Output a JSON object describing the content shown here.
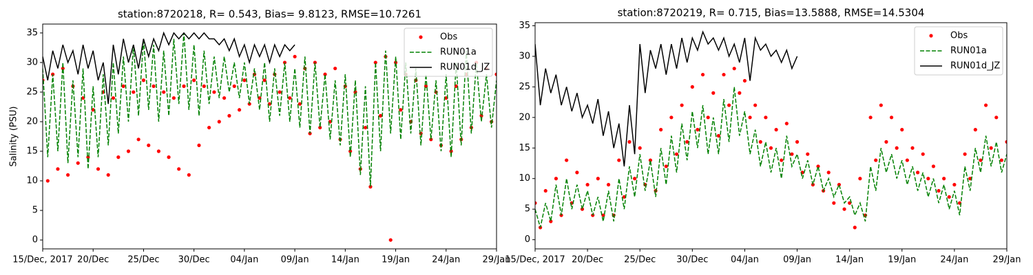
{
  "chart_data": [
    {
      "type": "line",
      "title": "station:8720218, R= 0.543, Bias= 9.8123, RMSE=10.7261",
      "ylabel": "Salinity (PSU)",
      "xlim": [
        0,
        45
      ],
      "ylim": [
        -1.5,
        36.5
      ],
      "xticks": [
        {
          "value": 0,
          "label": "15/Dec, 2017"
        },
        {
          "value": 5,
          "label": "20/Dec"
        },
        {
          "value": 10,
          "label": "25/Dec"
        },
        {
          "value": 15,
          "label": "30/Dec"
        },
        {
          "value": 20,
          "label": "04/Jan"
        },
        {
          "value": 25,
          "label": "09/Jan"
        },
        {
          "value": 30,
          "label": "14/Jan"
        },
        {
          "value": 35,
          "label": "19/Jan"
        },
        {
          "value": 40,
          "label": "24/Jan"
        },
        {
          "value": 45,
          "label": "29/Jan"
        }
      ],
      "yticks": [
        0,
        5,
        10,
        15,
        20,
        25,
        30,
        35
      ],
      "legend": "upper right",
      "x": [
        0,
        0.5,
        1,
        1.5,
        2,
        2.5,
        3,
        3.5,
        4,
        4.5,
        5,
        5.5,
        6,
        6.5,
        7,
        7.5,
        8,
        8.5,
        9,
        9.5,
        10,
        10.5,
        11,
        11.5,
        12,
        12.5,
        13,
        13.5,
        14,
        14.5,
        15,
        15.5,
        16,
        16.5,
        17,
        17.5,
        18,
        18.5,
        19,
        19.5,
        20,
        20.5,
        21,
        21.5,
        22,
        22.5,
        23,
        23.5,
        24,
        24.5,
        25,
        25.5,
        26,
        26.5,
        27,
        27.5,
        28,
        28.5,
        29,
        29.5,
        30,
        30.5,
        31,
        31.5,
        32,
        32.5,
        33,
        33.5,
        34,
        34.5,
        35,
        35.5,
        36,
        36.5,
        37,
        37.5,
        38,
        38.5,
        39,
        39.5,
        40,
        40.5,
        41,
        41.5,
        42,
        42.5,
        43,
        43.5,
        44,
        44.5,
        45
      ],
      "series": [
        {
          "name": "Obs",
          "color": "#ff0000",
          "style": "marker",
          "values": [
            27,
            10,
            28,
            12,
            29,
            11,
            26,
            13,
            24,
            14,
            22,
            12,
            25,
            11,
            24,
            14,
            26,
            15,
            25,
            17,
            27,
            16,
            26,
            15,
            25,
            14,
            24,
            12,
            26,
            11,
            27,
            16,
            26,
            19,
            25,
            20,
            24,
            21,
            26,
            22,
            27,
            23,
            28,
            24,
            27,
            23,
            28,
            25,
            30,
            24,
            31,
            23,
            29,
            18,
            30,
            19,
            28,
            20,
            29,
            17,
            26,
            15,
            25,
            12,
            19,
            9,
            30,
            21,
            31,
            0,
            30,
            22,
            28,
            20,
            27,
            18,
            26,
            17,
            25,
            16,
            24,
            15,
            26,
            17,
            28,
            19,
            30,
            21,
            29,
            20,
            28
          ]
        },
        {
          "name": "RUN01a",
          "color": "#008000",
          "style": "dashed",
          "values": [
            29,
            14,
            28,
            15,
            30,
            13,
            27,
            14,
            29,
            12,
            26,
            14,
            28,
            16,
            30,
            18,
            31,
            20,
            33,
            21,
            34,
            22,
            33,
            20,
            32,
            21,
            34,
            23,
            35,
            22,
            33,
            21,
            32,
            23,
            31,
            24,
            31,
            25,
            30,
            24,
            30,
            23,
            29,
            22,
            30,
            20,
            29,
            21,
            30,
            20,
            29,
            19,
            31,
            18,
            30,
            19,
            28,
            17,
            27,
            16,
            28,
            14,
            27,
            11,
            26,
            9,
            30,
            15,
            32,
            18,
            31,
            17,
            30,
            18,
            29,
            16,
            28,
            17,
            27,
            15,
            28,
            14,
            30,
            16,
            32,
            18,
            30,
            20,
            28,
            19,
            27
          ]
        },
        {
          "name": "RUN01d_JZ",
          "color": "#000000",
          "style": "solid",
          "values": [
            31,
            27,
            32,
            29,
            33,
            30,
            32,
            28,
            33,
            29,
            32,
            27,
            30,
            23,
            33,
            28,
            34,
            30,
            33,
            29,
            34,
            31,
            34,
            32,
            35,
            33,
            35,
            34,
            35,
            34,
            35,
            34,
            35,
            34,
            34,
            33,
            34,
            32,
            34,
            31,
            33,
            30,
            33,
            31,
            33,
            30,
            33,
            31,
            33,
            32,
            33,
            null,
            null,
            null,
            null,
            null,
            null,
            null,
            null,
            null,
            null,
            null,
            null,
            null,
            null,
            null,
            null,
            null,
            null,
            null,
            null,
            null,
            null,
            null,
            null,
            null,
            null,
            null,
            null,
            null,
            null,
            null,
            null,
            null,
            null,
            null,
            null,
            null,
            null,
            null,
            null
          ]
        }
      ]
    },
    {
      "type": "line",
      "title": "station:8720219, R= 0.715, Bias=13.5888, RMSE=14.5304",
      "xlim": [
        0,
        45
      ],
      "ylim": [
        -1.5,
        35.5
      ],
      "xticks": [
        {
          "value": 0,
          "label": "15/Dec, 2017"
        },
        {
          "value": 5,
          "label": "20/Dec"
        },
        {
          "value": 10,
          "label": "25/Dec"
        },
        {
          "value": 15,
          "label": "30/Dec"
        },
        {
          "value": 20,
          "label": "04/Jan"
        },
        {
          "value": 25,
          "label": "09/Jan"
        },
        {
          "value": 30,
          "label": "14/Jan"
        },
        {
          "value": 35,
          "label": "19/Jan"
        },
        {
          "value": 40,
          "label": "24/Jan"
        },
        {
          "value": 45,
          "label": "29/Jan"
        }
      ],
      "yticks": [
        0,
        5,
        10,
        15,
        20,
        25,
        30,
        35
      ],
      "legend": "upper right",
      "x": [
        0,
        0.5,
        1,
        1.5,
        2,
        2.5,
        3,
        3.5,
        4,
        4.5,
        5,
        5.5,
        6,
        6.5,
        7,
        7.5,
        8,
        8.5,
        9,
        9.5,
        10,
        10.5,
        11,
        11.5,
        12,
        12.5,
        13,
        13.5,
        14,
        14.5,
        15,
        15.5,
        16,
        16.5,
        17,
        17.5,
        18,
        18.5,
        19,
        19.5,
        20,
        20.5,
        21,
        21.5,
        22,
        22.5,
        23,
        23.5,
        24,
        24.5,
        25,
        25.5,
        26,
        26.5,
        27,
        27.5,
        28,
        28.5,
        29,
        29.5,
        30,
        30.5,
        31,
        31.5,
        32,
        32.5,
        33,
        33.5,
        34,
        34.5,
        35,
        35.5,
        36,
        36.5,
        37,
        37.5,
        38,
        38.5,
        39,
        39.5,
        40,
        40.5,
        41,
        41.5,
        42,
        42.5,
        43,
        43.5,
        44,
        44.5,
        45
      ],
      "series": [
        {
          "name": "Obs",
          "color": "#ff0000",
          "style": "marker",
          "values": [
            6,
            2,
            8,
            3,
            10,
            4,
            13,
            6,
            11,
            5,
            9,
            4,
            10,
            4,
            9,
            4,
            13,
            7,
            16,
            10,
            15,
            9,
            13,
            8,
            18,
            12,
            20,
            14,
            22,
            16,
            25,
            18,
            27,
            20,
            24,
            17,
            27,
            22,
            28,
            24,
            26,
            20,
            22,
            16,
            20,
            15,
            18,
            13,
            19,
            14,
            16,
            11,
            14,
            9,
            12,
            8,
            11,
            6,
            9,
            5,
            6,
            2,
            10,
            4,
            20,
            13,
            22,
            16,
            20,
            15,
            18,
            13,
            15,
            11,
            14,
            10,
            12,
            8,
            10,
            7,
            9,
            6,
            14,
            10,
            18,
            13,
            22,
            15,
            20,
            13,
            16
          ]
        },
        {
          "name": "RUN01a",
          "color": "#008000",
          "style": "dashed",
          "values": [
            5,
            2,
            6,
            3,
            9,
            4,
            10,
            5,
            9,
            5,
            8,
            4,
            7,
            3,
            8,
            3,
            10,
            5,
            12,
            7,
            14,
            8,
            13,
            7,
            15,
            9,
            17,
            11,
            19,
            13,
            21,
            15,
            22,
            14,
            20,
            14,
            23,
            16,
            25,
            17,
            21,
            14,
            18,
            12,
            16,
            11,
            15,
            10,
            17,
            12,
            14,
            10,
            13,
            9,
            12,
            8,
            10,
            7,
            9,
            6,
            7,
            4,
            6,
            3,
            12,
            8,
            15,
            11,
            14,
            10,
            13,
            9,
            12,
            8,
            11,
            7,
            10,
            6,
            9,
            5,
            8,
            4,
            12,
            8,
            15,
            11,
            17,
            12,
            16,
            11,
            14
          ]
        },
        {
          "name": "RUN01d_JZ",
          "color": "#000000",
          "style": "solid",
          "values": [
            32,
            22,
            28,
            24,
            27,
            22,
            25,
            21,
            24,
            20,
            22,
            19,
            23,
            17,
            21,
            15,
            19,
            12,
            22,
            14,
            32,
            24,
            31,
            28,
            32,
            27,
            32,
            28,
            33,
            29,
            33,
            31,
            34,
            32,
            33,
            31,
            33,
            30,
            32,
            29,
            33,
            26,
            33,
            31,
            32,
            30,
            31,
            29,
            31,
            28,
            30,
            null,
            null,
            null,
            null,
            null,
            null,
            null,
            null,
            null,
            null,
            null,
            null,
            null,
            null,
            null,
            null,
            null,
            null,
            null,
            null,
            null,
            null,
            null,
            null,
            null,
            null,
            null,
            null,
            null,
            null,
            null,
            null,
            null,
            null,
            null,
            null,
            null,
            null,
            null,
            null
          ]
        }
      ]
    }
  ]
}
